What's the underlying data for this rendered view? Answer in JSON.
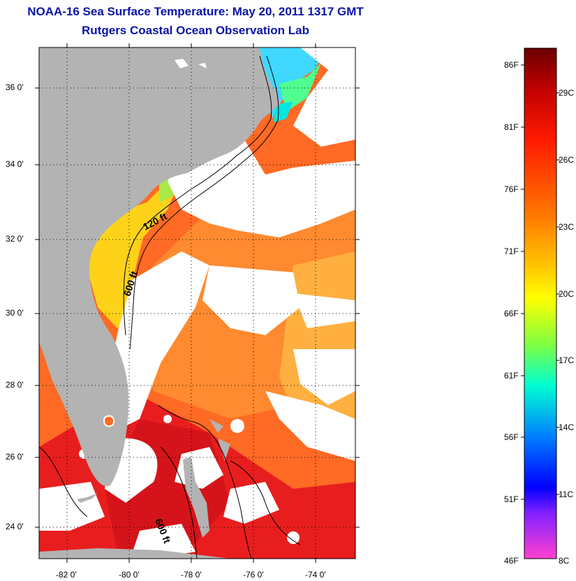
{
  "title": "NOAA-16 Sea Surface Temperature:  May 20, 2011 1317 GMT",
  "subtitle": "Rutgers Coastal Ocean Observation Lab",
  "map": {
    "lat_ticks": [
      "36 0'",
      "34 0'",
      "32 0'",
      "30 0'",
      "28 0'",
      "26 0'",
      "24 0'"
    ],
    "lon_ticks": [
      "-82 0'",
      "-80 0'",
      "-78 0'",
      "-76 0'",
      "-74 0'"
    ],
    "isobath_labels": [
      "120 ft",
      "600 ft",
      "600 ft"
    ],
    "colors": {
      "land": "#b3b3b3",
      "cloud": "#ffffff",
      "sst_warm": "#ff5a1e",
      "sst_hot": "#e8141e",
      "sst_mid": "#ffb21e",
      "sst_cool": "#ffd81a"
    }
  },
  "colorbar": {
    "fahrenheit_labels": [
      "86F",
      "81F",
      "76F",
      "71F",
      "66F",
      "61F",
      "56F",
      "51F",
      "46F"
    ],
    "celsius_labels": [
      "29C",
      "26C",
      "23C",
      "20C",
      "17C",
      "14C",
      "11C",
      "8C"
    ]
  }
}
